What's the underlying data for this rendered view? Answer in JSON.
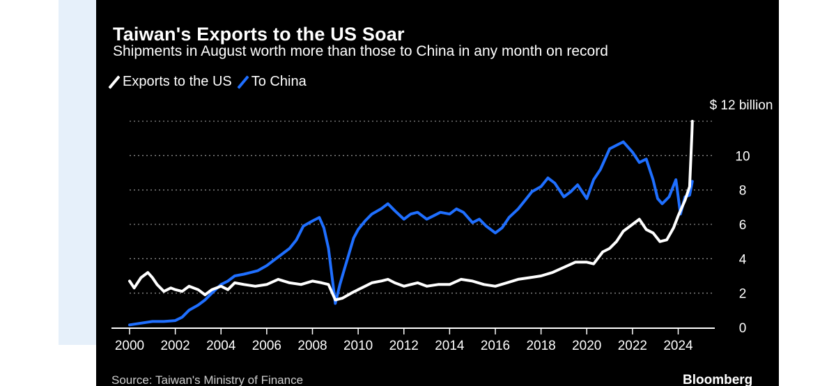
{
  "chart_data": {
    "type": "line",
    "title": "Taiwan's Exports to the US Soar",
    "subtitle": "Shipments in August worth more than those to China in any month on record",
    "unit_label": "$ 12 billion",
    "xlabel": "",
    "ylabel": "",
    "xlim": [
      2000,
      2025.6
    ],
    "ylim": [
      0,
      12
    ],
    "x_ticks": [
      2000,
      2002,
      2004,
      2006,
      2008,
      2010,
      2012,
      2014,
      2016,
      2018,
      2020,
      2022,
      2024
    ],
    "x_tick_labels": [
      "2000",
      "2002",
      "2004",
      "2006",
      "2008",
      "2010",
      "2012",
      "2014",
      "2016",
      "2018",
      "2020",
      "2022",
      "2024"
    ],
    "y_ticks": [
      0,
      2,
      4,
      6,
      8,
      10
    ],
    "y_tick_labels": [
      "0",
      "2",
      "4",
      "6",
      "8",
      "10"
    ],
    "grid": true,
    "legend_position": "top-left",
    "series": [
      {
        "name": "Exports to the US",
        "color": "#ffffff",
        "points": [
          [
            2000,
            2.7
          ],
          [
            2000.2,
            2.3
          ],
          [
            2000.5,
            2.9
          ],
          [
            2000.8,
            3.2
          ],
          [
            2001.0,
            2.9
          ],
          [
            2001.2,
            2.5
          ],
          [
            2001.5,
            2.1
          ],
          [
            2001.8,
            2.3
          ],
          [
            2002.0,
            2.2
          ],
          [
            2002.3,
            2.1
          ],
          [
            2002.6,
            2.4
          ],
          [
            2003.0,
            2.2
          ],
          [
            2003.3,
            1.9
          ],
          [
            2003.6,
            2.2
          ],
          [
            2004.0,
            2.4
          ],
          [
            2004.3,
            2.2
          ],
          [
            2004.6,
            2.6
          ],
          [
            2005.0,
            2.5
          ],
          [
            2005.5,
            2.4
          ],
          [
            2006.0,
            2.5
          ],
          [
            2006.5,
            2.8
          ],
          [
            2007.0,
            2.6
          ],
          [
            2007.5,
            2.5
          ],
          [
            2008.0,
            2.7
          ],
          [
            2008.4,
            2.6
          ],
          [
            2008.7,
            2.5
          ],
          [
            2009.0,
            1.6
          ],
          [
            2009.3,
            1.7
          ],
          [
            2009.7,
            2.0
          ],
          [
            2010.0,
            2.2
          ],
          [
            2010.3,
            2.4
          ],
          [
            2010.6,
            2.6
          ],
          [
            2011.0,
            2.7
          ],
          [
            2011.3,
            2.8
          ],
          [
            2011.6,
            2.6
          ],
          [
            2012.0,
            2.4
          ],
          [
            2012.3,
            2.5
          ],
          [
            2012.6,
            2.6
          ],
          [
            2013.0,
            2.4
          ],
          [
            2013.5,
            2.5
          ],
          [
            2014.0,
            2.5
          ],
          [
            2014.5,
            2.8
          ],
          [
            2015.0,
            2.7
          ],
          [
            2015.5,
            2.5
          ],
          [
            2016.0,
            2.4
          ],
          [
            2016.5,
            2.6
          ],
          [
            2017.0,
            2.8
          ],
          [
            2017.5,
            2.9
          ],
          [
            2018.0,
            3.0
          ],
          [
            2018.5,
            3.2
          ],
          [
            2019.0,
            3.5
          ],
          [
            2019.5,
            3.8
          ],
          [
            2020.0,
            3.8
          ],
          [
            2020.3,
            3.7
          ],
          [
            2020.7,
            4.4
          ],
          [
            2021.0,
            4.6
          ],
          [
            2021.3,
            5.0
          ],
          [
            2021.6,
            5.6
          ],
          [
            2022.0,
            6.0
          ],
          [
            2022.3,
            6.3
          ],
          [
            2022.6,
            5.7
          ],
          [
            2022.9,
            5.5
          ],
          [
            2023.2,
            5.0
          ],
          [
            2023.5,
            5.1
          ],
          [
            2023.8,
            5.8
          ],
          [
            2024.0,
            6.5
          ],
          [
            2024.3,
            7.4
          ],
          [
            2024.5,
            8.2
          ],
          [
            2024.6,
            11.3
          ],
          [
            2024.62,
            12.0
          ]
        ]
      },
      {
        "name": "To China",
        "color": "#1f6fff",
        "points": [
          [
            2000,
            0.15
          ],
          [
            2000.5,
            0.25
          ],
          [
            2001.0,
            0.35
          ],
          [
            2001.5,
            0.35
          ],
          [
            2002.0,
            0.4
          ],
          [
            2002.3,
            0.6
          ],
          [
            2002.6,
            1.0
          ],
          [
            2003.0,
            1.3
          ],
          [
            2003.3,
            1.6
          ],
          [
            2003.6,
            2.0
          ],
          [
            2004.0,
            2.5
          ],
          [
            2004.3,
            2.7
          ],
          [
            2004.6,
            3.0
          ],
          [
            2005.0,
            3.1
          ],
          [
            2005.3,
            3.2
          ],
          [
            2005.6,
            3.3
          ],
          [
            2006.0,
            3.6
          ],
          [
            2006.3,
            3.9
          ],
          [
            2006.6,
            4.2
          ],
          [
            2007.0,
            4.6
          ],
          [
            2007.3,
            5.1
          ],
          [
            2007.6,
            5.9
          ],
          [
            2008.0,
            6.2
          ],
          [
            2008.3,
            6.4
          ],
          [
            2008.5,
            5.8
          ],
          [
            2008.7,
            4.6
          ],
          [
            2008.9,
            2.5
          ],
          [
            2009.0,
            1.4
          ],
          [
            2009.2,
            2.5
          ],
          [
            2009.4,
            3.4
          ],
          [
            2009.6,
            4.3
          ],
          [
            2009.8,
            5.2
          ],
          [
            2010.0,
            5.7
          ],
          [
            2010.3,
            6.2
          ],
          [
            2010.6,
            6.6
          ],
          [
            2011.0,
            6.9
          ],
          [
            2011.3,
            7.2
          ],
          [
            2011.6,
            6.8
          ],
          [
            2012.0,
            6.3
          ],
          [
            2012.3,
            6.6
          ],
          [
            2012.6,
            6.7
          ],
          [
            2013.0,
            6.3
          ],
          [
            2013.3,
            6.5
          ],
          [
            2013.6,
            6.7
          ],
          [
            2014.0,
            6.6
          ],
          [
            2014.3,
            6.9
          ],
          [
            2014.6,
            6.7
          ],
          [
            2015.0,
            6.1
          ],
          [
            2015.3,
            6.3
          ],
          [
            2015.6,
            5.9
          ],
          [
            2016.0,
            5.5
          ],
          [
            2016.3,
            5.8
          ],
          [
            2016.6,
            6.4
          ],
          [
            2017.0,
            6.9
          ],
          [
            2017.3,
            7.4
          ],
          [
            2017.6,
            7.9
          ],
          [
            2018.0,
            8.2
          ],
          [
            2018.3,
            8.7
          ],
          [
            2018.6,
            8.4
          ],
          [
            2019.0,
            7.6
          ],
          [
            2019.3,
            7.9
          ],
          [
            2019.6,
            8.3
          ],
          [
            2020.0,
            7.5
          ],
          [
            2020.3,
            8.6
          ],
          [
            2020.6,
            9.2
          ],
          [
            2021.0,
            10.4
          ],
          [
            2021.3,
            10.6
          ],
          [
            2021.6,
            10.8
          ],
          [
            2022.0,
            10.2
          ],
          [
            2022.3,
            9.6
          ],
          [
            2022.6,
            9.8
          ],
          [
            2022.9,
            8.6
          ],
          [
            2023.1,
            7.5
          ],
          [
            2023.3,
            7.2
          ],
          [
            2023.6,
            7.6
          ],
          [
            2023.9,
            8.6
          ],
          [
            2024.1,
            6.6
          ],
          [
            2024.3,
            7.6
          ],
          [
            2024.5,
            7.7
          ],
          [
            2024.62,
            8.5
          ]
        ]
      }
    ]
  },
  "source_text": "Source: Taiwan's Ministry of Finance",
  "brand_text": "Bloomberg"
}
